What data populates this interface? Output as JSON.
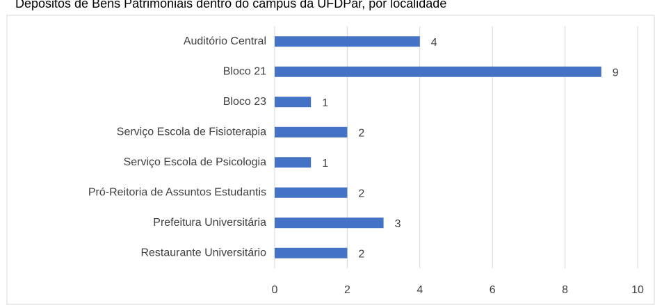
{
  "chart_data": {
    "type": "bar",
    "orientation": "horizontal",
    "title": "Depósitos de Bens Patrimoniais dentro do campus da UFDPar, por localidade",
    "categories": [
      "Auditório Central",
      "Bloco 21",
      "Bloco 23",
      "Serviço Escola de Fisioterapia",
      "Serviço Escola de Psicologia",
      "Pró-Reitoria de Assuntos Estudantis",
      "Prefeitura Universitária",
      "Restaurante Universitário"
    ],
    "values": [
      4,
      9,
      1,
      2,
      1,
      2,
      3,
      2
    ],
    "color": "#4472c4",
    "xlim": [
      0,
      10
    ],
    "xticks": [
      0,
      2,
      4,
      6,
      8,
      10
    ],
    "grid": true
  }
}
